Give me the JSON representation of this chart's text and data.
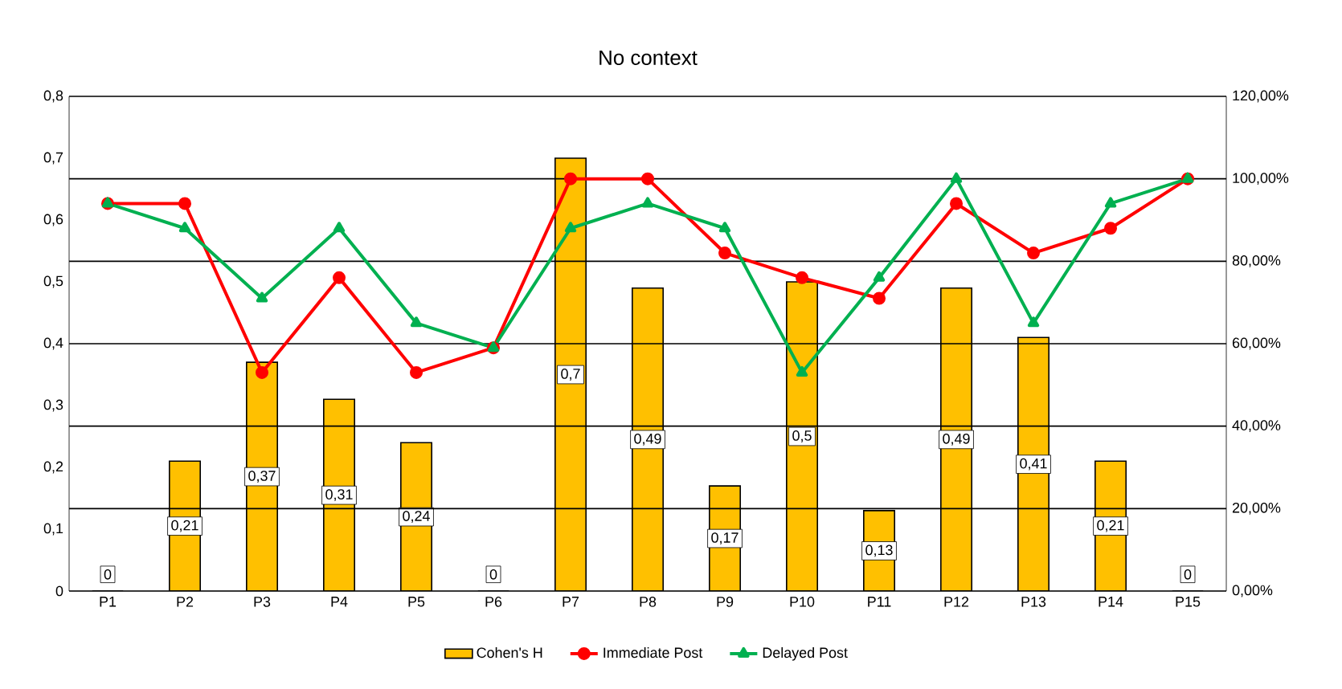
{
  "chart_data": {
    "type": "bar",
    "title": "No context",
    "categories": [
      "P1",
      "P2",
      "P3",
      "P4",
      "P5",
      "P6",
      "P7",
      "P8",
      "P9",
      "P10",
      "P11",
      "P12",
      "P13",
      "P14",
      "P15"
    ],
    "series": [
      {
        "name": "Cohen's H",
        "color": "#ffc000",
        "values": [
          0,
          0.21,
          0.37,
          0.31,
          0.24,
          0,
          0.7,
          0.49,
          0.17,
          0.5,
          0.13,
          0.49,
          0.41,
          0.21,
          0
        ],
        "value_labels": [
          "0",
          "0,21",
          "0,37",
          "0,31",
          "0,24",
          "0",
          "0,7",
          "0,49",
          "0,17",
          "0,5",
          "0,13",
          "0,49",
          "0,41",
          "0,21",
          "0"
        ]
      },
      {
        "name": "Immediate Post",
        "type": "line",
        "axis": "y2",
        "color": "#ff0000",
        "marker": "circle",
        "values": [
          94,
          94,
          53,
          76,
          53,
          59,
          100,
          100,
          82,
          76,
          71,
          94,
          82,
          88,
          100
        ]
      },
      {
        "name": "Delayed Post",
        "type": "line",
        "axis": "y2",
        "color": "#00b050",
        "marker": "triangle",
        "values": [
          94,
          88,
          71,
          88,
          65,
          59,
          88,
          94,
          88,
          53,
          76,
          100,
          65,
          94,
          100
        ]
      }
    ],
    "ylim": [
      0,
      0.8
    ],
    "yticks": [
      0,
      {
        "value": 0.1,
        "label": "0,1"
      },
      {
        "value": 0.2,
        "label": "0,2"
      },
      {
        "value": 0.3,
        "label": "0,3"
      },
      {
        "value": 0.4,
        "label": "0,4"
      },
      {
        "value": 0.5,
        "label": "0,5"
      },
      {
        "value": 0.6,
        "label": "0,6"
      },
      {
        "value": 0.7,
        "label": "0,7"
      },
      {
        "value": 0.8,
        "label": "0,8"
      }
    ],
    "y2lim": [
      0,
      120
    ],
    "y2ticks": [
      {
        "value": 0,
        "label": "0,00%"
      },
      {
        "value": 20,
        "label": "20,00%"
      },
      {
        "value": 40,
        "label": "40,00%"
      },
      {
        "value": 60,
        "label": "60,00%"
      },
      {
        "value": 80,
        "label": "80,00%"
      },
      {
        "value": 100,
        "label": "100,00%"
      },
      {
        "value": 120,
        "label": "120,00%"
      }
    ],
    "grid": true,
    "legend": "bottom"
  }
}
